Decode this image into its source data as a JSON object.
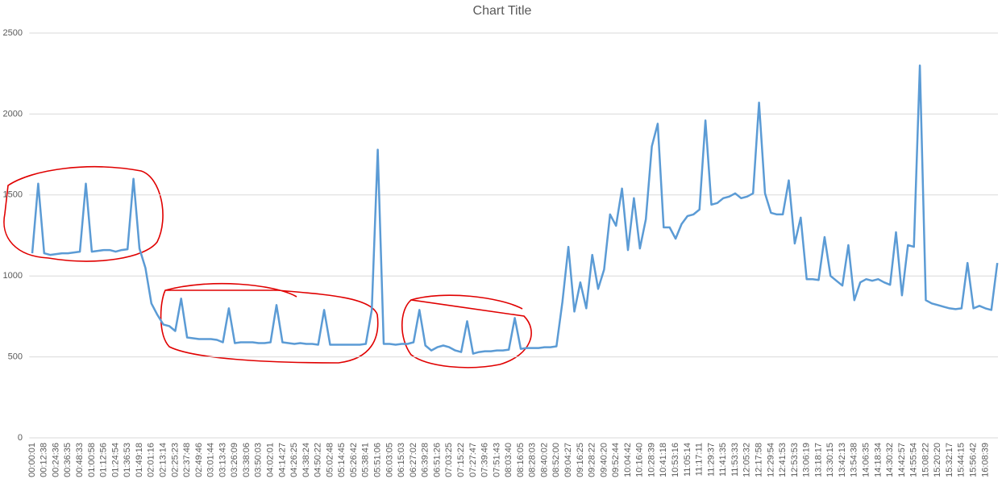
{
  "chart_data": {
    "type": "line",
    "title": "Chart Title",
    "categories": [
      "00:00:01",
      null,
      "00:12:38",
      null,
      "00:24:36",
      null,
      "00:36:35",
      null,
      "00:48:33",
      null,
      "01:00:58",
      null,
      "01:12:56",
      null,
      "01:24:54",
      null,
      "01:36:53",
      null,
      "01:49:18",
      null,
      "02:01:16",
      null,
      "02:13:14",
      null,
      "02:25:23",
      null,
      "02:37:48",
      null,
      "02:49:46",
      null,
      "03:01:44",
      null,
      "03:13:43",
      null,
      "03:26:09",
      null,
      "03:38:06",
      null,
      "03:50:03",
      null,
      "04:02:01",
      null,
      "04:14:27",
      null,
      "04:26:25",
      null,
      "04:38:24",
      null,
      "04:50:22",
      null,
      "05:02:48",
      null,
      "05:14:45",
      null,
      "05:26:42",
      null,
      "05:38:41",
      null,
      "05:51:06",
      null,
      "06:03:05",
      null,
      "06:15:03",
      null,
      "06:27:02",
      null,
      "06:39:28",
      null,
      "06:51:26",
      null,
      "07:03:25",
      null,
      "07:15:22",
      null,
      "07:27:47",
      null,
      "07:39:46",
      null,
      "07:51:43",
      null,
      "08:03:40",
      null,
      "08:16:05",
      null,
      "08:28:03",
      null,
      "08:40:02",
      null,
      "08:52:00",
      null,
      "09:04:27",
      null,
      "09:16:25",
      null,
      "09:28:22",
      null,
      "09:40:20",
      null,
      "09:52:44",
      null,
      "10:04:42",
      null,
      "10:16:40",
      null,
      "10:28:39",
      null,
      "10:41:18",
      null,
      "10:53:16",
      null,
      "11:05:14",
      null,
      "11:17:11",
      null,
      "11:29:37",
      null,
      "11:41:35",
      null,
      "11:53:33",
      null,
      "12:05:32",
      null,
      "12:17:58",
      null,
      "12:29:54",
      null,
      "12:41:53",
      null,
      "12:53:53",
      null,
      "13:06:19",
      null,
      "13:18:17",
      null,
      "13:30:15",
      null,
      "13:42:13",
      null,
      "13:54:38",
      null,
      "14:06:35",
      null,
      "14:18:34",
      null,
      "14:30:32",
      null,
      "14:42:57",
      null,
      "14:55:54",
      null,
      "15:08:22",
      null,
      "15:20:20",
      null,
      "15:32:17",
      null,
      "15:44:15",
      null,
      "15:56:42",
      null,
      "16:08:39",
      null,
      null
    ],
    "values": [
      1140,
      1570,
      1140,
      1130,
      1135,
      1140,
      1140,
      1145,
      1150,
      1570,
      1150,
      1155,
      1160,
      1160,
      1150,
      1160,
      1165,
      1600,
      1170,
      1050,
      830,
      760,
      700,
      690,
      660,
      860,
      620,
      615,
      610,
      610,
      610,
      605,
      590,
      800,
      585,
      590,
      590,
      590,
      585,
      585,
      590,
      820,
      590,
      585,
      580,
      585,
      580,
      580,
      575,
      790,
      575,
      575,
      575,
      575,
      575,
      575,
      580,
      790,
      1780,
      580,
      580,
      575,
      580,
      580,
      590,
      790,
      570,
      540,
      560,
      570,
      560,
      540,
      530,
      720,
      520,
      530,
      535,
      535,
      540,
      540,
      545,
      740,
      550,
      555,
      555,
      555,
      560,
      560,
      565,
      840,
      1180,
      780,
      960,
      800,
      1130,
      920,
      1040,
      1380,
      1310,
      1540,
      1160,
      1480,
      1170,
      1350,
      1800,
      1940,
      1300,
      1300,
      1230,
      1320,
      1370,
      1380,
      1410,
      1960,
      1440,
      1450,
      1480,
      1490,
      1510,
      1480,
      1490,
      1510,
      2070,
      1510,
      1390,
      1380,
      1380,
      1590,
      1200,
      1360,
      980,
      980,
      975,
      1240,
      1000,
      970,
      940,
      1190,
      850,
      960,
      980,
      970,
      980,
      960,
      945,
      1270,
      880,
      1190,
      1180,
      2300,
      850,
      830,
      820,
      810,
      800,
      795,
      800,
      1080,
      800,
      815,
      800,
      790,
      1080
    ],
    "color": "#5b9bd5",
    "ylim": [
      0,
      2500
    ],
    "yticks": [
      0,
      500,
      1000,
      1500,
      2000,
      2500
    ],
    "grid": true
  }
}
